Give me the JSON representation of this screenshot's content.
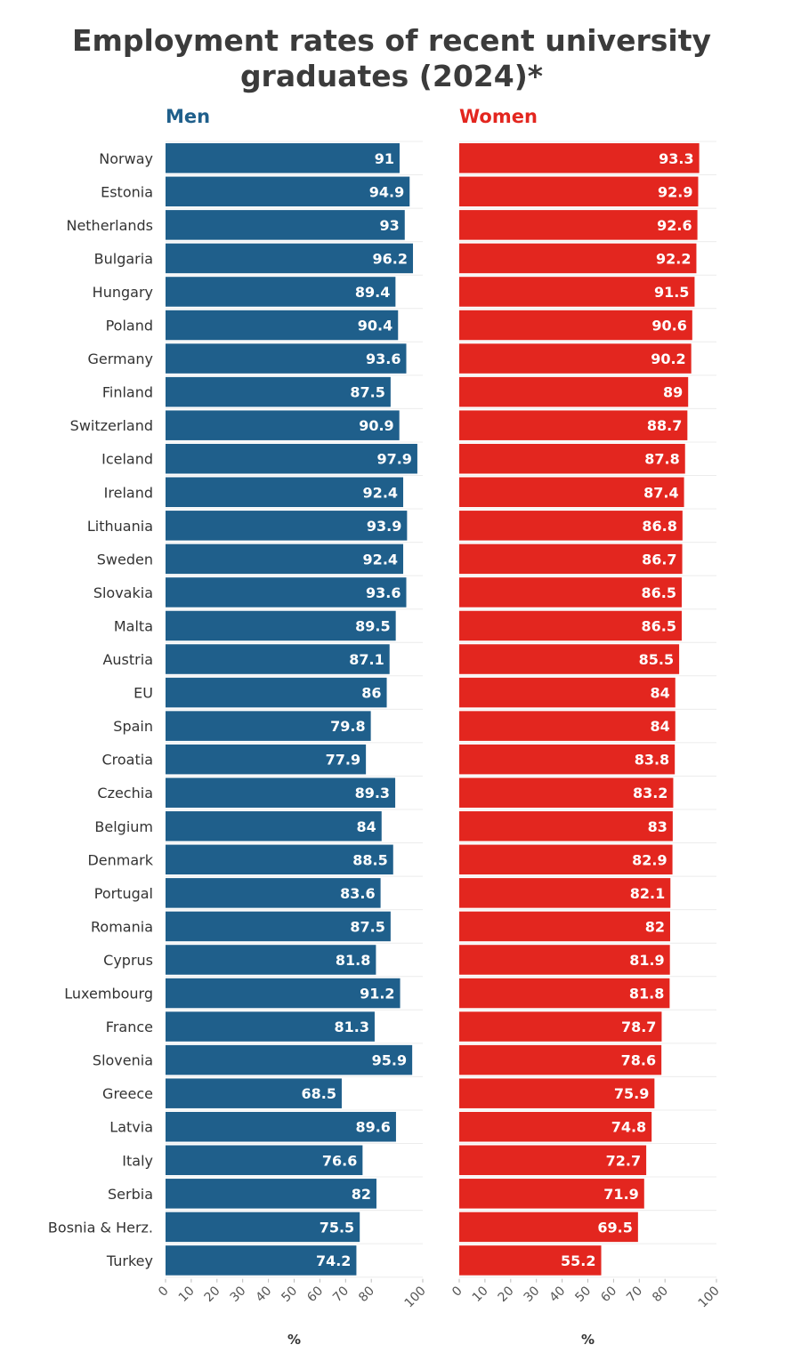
{
  "title_line1": "Employment rates of recent university",
  "title_line2": "graduates (2024)*",
  "chart_data": {
    "type": "bar",
    "orientation": "horizontal",
    "title": "Employment rates of recent university graduates (2024)*",
    "categories": [
      "Norway",
      "Estonia",
      "Netherlands",
      "Bulgaria",
      "Hungary",
      "Poland",
      "Germany",
      "Finland",
      "Switzerland",
      "Iceland",
      "Ireland",
      "Lithuania",
      "Sweden",
      "Slovakia",
      "Malta",
      "Austria",
      "EU",
      "Spain",
      "Croatia",
      "Czechia",
      "Belgium",
      "Denmark",
      "Portugal",
      "Romania",
      "Cyprus",
      "Luxembourg",
      "France",
      "Slovenia",
      "Greece",
      "Latvia",
      "Italy",
      "Serbia",
      "Bosnia & Herz.",
      "Turkey"
    ],
    "series": [
      {
        "name": "Men",
        "color": "#1f5f8b",
        "values": [
          91,
          94.9,
          93,
          96.2,
          89.4,
          90.4,
          93.6,
          87.5,
          90.9,
          97.9,
          92.4,
          93.9,
          92.4,
          93.6,
          89.5,
          87.1,
          86,
          79.8,
          77.9,
          89.3,
          84,
          88.5,
          83.6,
          87.5,
          81.8,
          91.2,
          81.3,
          95.9,
          68.5,
          89.6,
          76.6,
          82,
          75.5,
          74.2
        ]
      },
      {
        "name": "Women",
        "color": "#e3261f",
        "values": [
          93.3,
          92.9,
          92.6,
          92.2,
          91.5,
          90.6,
          90.2,
          89,
          88.7,
          87.8,
          87.4,
          86.8,
          86.7,
          86.5,
          86.5,
          85.5,
          84,
          84,
          83.8,
          83.2,
          83,
          82.9,
          82.1,
          82,
          81.9,
          81.8,
          78.7,
          78.6,
          75.9,
          74.8,
          72.7,
          71.9,
          69.5,
          55.2
        ]
      }
    ],
    "xlim": [
      0,
      100
    ],
    "xticks": [
      0,
      10,
      20,
      30,
      40,
      50,
      60,
      70,
      80,
      100
    ],
    "xlabel": "%",
    "grid": true
  }
}
